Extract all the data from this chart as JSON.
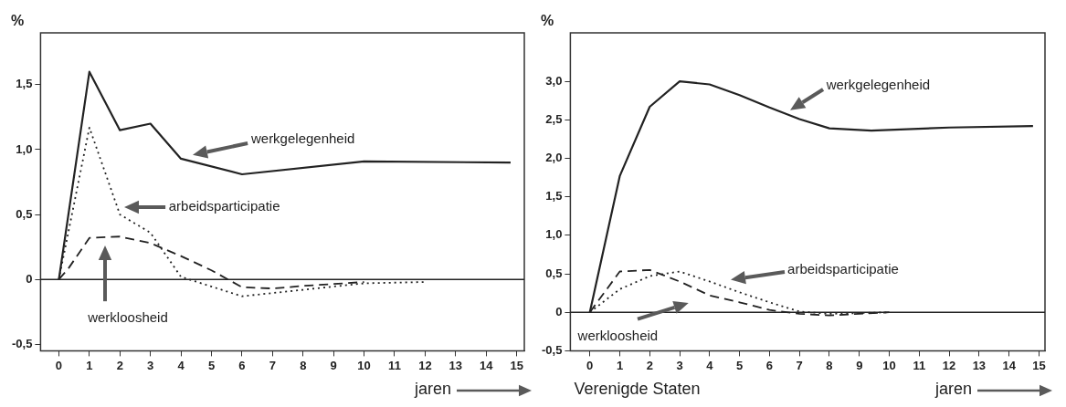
{
  "chart_data": [
    {
      "type": "line",
      "xlabel": "jaren",
      "ylabel": "%",
      "xlim": [
        -0.6,
        15.25
      ],
      "ylim": [
        -0.55,
        1.9
      ],
      "xticks": [
        0,
        1,
        2,
        3,
        4,
        5,
        6,
        7,
        8,
        9,
        10,
        11,
        12,
        13,
        14,
        15
      ],
      "yticks": [
        {
          "value": -0.5,
          "label": "-0,5"
        },
        0,
        {
          "value": 0.5,
          "label": "0,5"
        },
        {
          "value": 1,
          "label": "1,0"
        },
        {
          "value": 1.5,
          "label": "1,5"
        }
      ],
      "grid": false,
      "legend": false,
      "marker": "none",
      "ref_lines": [
        {
          "axis": "y",
          "value": 0,
          "color": "#222222"
        }
      ],
      "series": [
        {
          "name": "werkgelegenheid",
          "color": "#222222",
          "line_style": "solid",
          "x": [
            0,
            1,
            2,
            3,
            4,
            6,
            10,
            14.8
          ],
          "values": [
            0,
            1.6,
            1.15,
            1.2,
            0.93,
            0.81,
            0.91,
            0.9
          ]
        },
        {
          "name": "arbeidsparticipatie",
          "color": "#222222",
          "line_style": "dotted",
          "x": [
            0,
            1,
            2,
            3,
            4,
            6,
            8,
            10,
            12
          ],
          "values": [
            0,
            1.17,
            0.5,
            0.36,
            0.02,
            -0.13,
            -0.08,
            -0.03,
            -0.02
          ]
        },
        {
          "name": "werkloosheid",
          "color": "#222222",
          "line_style": "dashed",
          "x": [
            0,
            0.3,
            1,
            2,
            3,
            4,
            5,
            6,
            7,
            8,
            10
          ],
          "values": [
            0,
            0.08,
            0.32,
            0.33,
            0.28,
            0.18,
            0.07,
            -0.06,
            -0.07,
            -0.05,
            -0.02
          ]
        }
      ]
    },
    {
      "type": "line",
      "xlabel": "jaren",
      "ylabel": "%",
      "xlim": [
        -0.65,
        15.2
      ],
      "ylim": [
        -0.5,
        3.63
      ],
      "xticks": [
        0,
        1,
        2,
        3,
        4,
        5,
        6,
        7,
        8,
        9,
        10,
        11,
        12,
        13,
        14,
        15
      ],
      "yticks": [
        {
          "value": -0.5,
          "label": "-0,5"
        },
        0,
        {
          "value": 0.5,
          "label": "0,5"
        },
        {
          "value": 1,
          "label": "1,0"
        },
        {
          "value": 1.5,
          "label": "1,5"
        },
        {
          "value": 2,
          "label": "2,0"
        },
        {
          "value": 2.5,
          "label": "2,5"
        },
        {
          "value": 3,
          "label": "3,0"
        }
      ],
      "grid": false,
      "legend": false,
      "marker": "none",
      "ref_lines": [
        {
          "axis": "y",
          "value": 0,
          "color": "#222222"
        }
      ],
      "annotations": [
        "Verenigde Staten"
      ],
      "series": [
        {
          "name": "werkgelegenheid",
          "color": "#222222",
          "line_style": "solid",
          "x": [
            0,
            1,
            2,
            3,
            4,
            5,
            6,
            7,
            8,
            9.4,
            12,
            14.8
          ],
          "values": [
            0,
            1.77,
            2.67,
            3.0,
            2.96,
            2.82,
            2.66,
            2.51,
            2.39,
            2.36,
            2.4,
            2.42
          ]
        },
        {
          "name": "arbeidsparticipatie",
          "color": "#222222",
          "line_style": "dotted",
          "x": [
            0,
            1,
            2,
            3,
            4,
            5,
            6,
            7,
            8,
            10
          ],
          "values": [
            0,
            0.3,
            0.47,
            0.53,
            0.4,
            0.26,
            0.13,
            0.01,
            -0.02,
            0
          ]
        },
        {
          "name": "werkloosheid",
          "color": "#222222",
          "line_style": "dashed",
          "x": [
            0,
            1,
            2,
            3,
            4,
            5,
            6,
            7,
            8,
            9,
            10
          ],
          "values": [
            0,
            0.53,
            0.55,
            0.4,
            0.22,
            0.13,
            0.03,
            -0.02,
            -0.04,
            -0.02,
            0
          ]
        }
      ]
    }
  ]
}
